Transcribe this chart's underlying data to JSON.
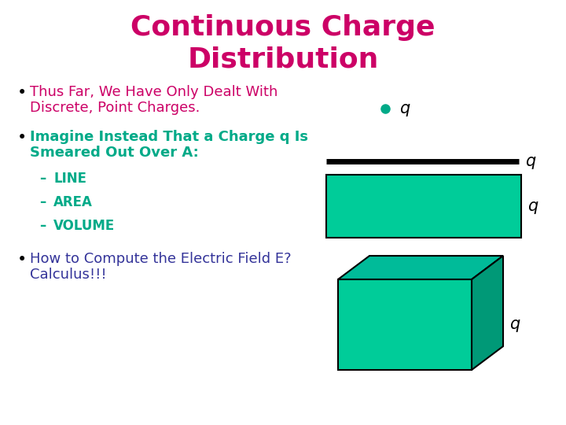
{
  "title_line1": "Continuous Charge",
  "title_line2": "Distribution",
  "title_color": "#CC0066",
  "background_color": "#FFFFFF",
  "bullet_dot_color": "#000000",
  "bullet1_line1": "Thus Far, We Have Only Dealt With",
  "bullet1_line2": "Discrete, Point Charges.",
  "bullet1_color": "#CC0066",
  "bullet2_line1": "Imagine Instead That a Charge q Is",
  "bullet2_line2": "Smeared Out Over A:",
  "bullet2_color": "#00AA88",
  "sub1": "LINE",
  "sub2": "AREA",
  "sub3": "VOLUME",
  "sub_color": "#00AA88",
  "bullet3_line1": "How to Compute the Electric Field E?",
  "bullet3_line2": "Calculus!!!",
  "bullet3_color": "#333399",
  "q_label_color": "#000000",
  "dot_color": "#00AA88",
  "line_color": "#000000",
  "rect_color": "#00CC99",
  "rect_edge": "#000000",
  "cube_front_color": "#00CC99",
  "cube_side_color": "#009977",
  "cube_top_color": "#00BB99",
  "title_fontsize": 26,
  "body_fontsize": 13,
  "sub_fontsize": 12
}
